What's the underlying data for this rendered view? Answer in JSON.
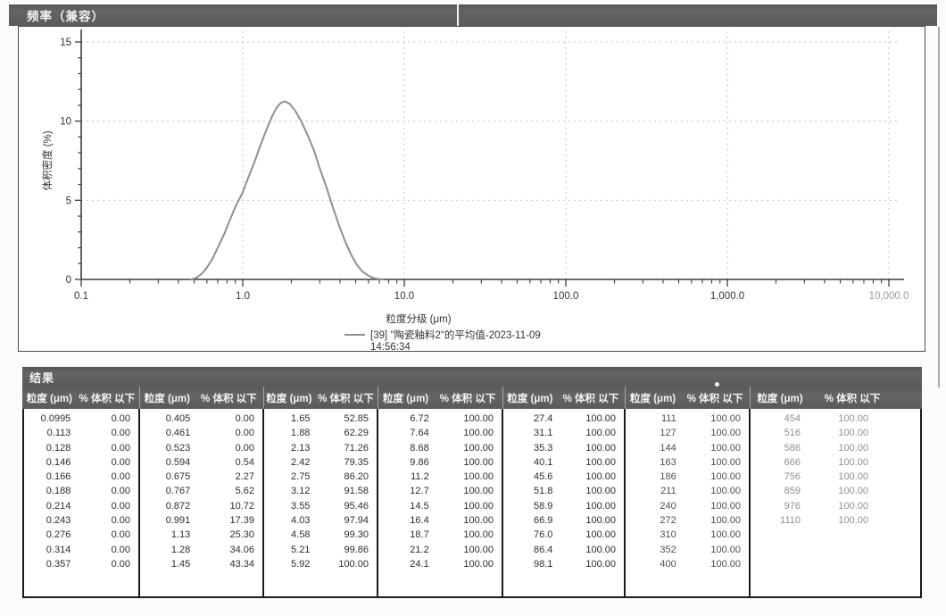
{
  "frequency_panel": {
    "title": "频率（兼容）"
  },
  "chart_data": {
    "type": "line",
    "title": "频率（兼容）",
    "xlabel": "粒度分级 (μm)",
    "ylabel": "体积密度 (%)",
    "x_scale": "log",
    "xlim": [
      0.1,
      10000
    ],
    "ylim": [
      0,
      15
    ],
    "y_ticks": [
      0,
      5,
      10,
      15
    ],
    "x_tick_labels": [
      "0.1",
      "1.0",
      "10.0",
      "100.0",
      "1,000.0",
      "10,000.0"
    ],
    "grid": true,
    "legend_position": "bottom-center",
    "series": [
      {
        "name": "[39] \"陶瓷釉料2\"的平均值-2023-11-09",
        "name_line2": "14:56:34",
        "color": "#8f8f8f",
        "points": [
          [
            0.48,
            0
          ],
          [
            0.52,
            0.12
          ],
          [
            0.56,
            0.38
          ],
          [
            0.6,
            0.75
          ],
          [
            0.65,
            1.3
          ],
          [
            0.7,
            2.0
          ],
          [
            0.77,
            2.9
          ],
          [
            0.84,
            3.85
          ],
          [
            0.91,
            4.7
          ],
          [
            0.99,
            5.4
          ],
          [
            1.08,
            6.4
          ],
          [
            1.19,
            7.5
          ],
          [
            1.3,
            8.6
          ],
          [
            1.42,
            9.6
          ],
          [
            1.52,
            10.3
          ],
          [
            1.62,
            10.85
          ],
          [
            1.72,
            11.15
          ],
          [
            1.82,
            11.25
          ],
          [
            1.95,
            11.1
          ],
          [
            2.1,
            10.7
          ],
          [
            2.3,
            10.0
          ],
          [
            2.5,
            9.2
          ],
          [
            2.75,
            8.2
          ],
          [
            3.0,
            7.0
          ],
          [
            3.3,
            5.8
          ],
          [
            3.6,
            4.6
          ],
          [
            3.95,
            3.4
          ],
          [
            4.3,
            2.4
          ],
          [
            4.7,
            1.55
          ],
          [
            5.1,
            0.9
          ],
          [
            5.5,
            0.5
          ],
          [
            5.95,
            0.26
          ],
          [
            6.4,
            0.1
          ],
          [
            6.9,
            0.03
          ],
          [
            7.3,
            0
          ]
        ]
      }
    ]
  },
  "results_table": {
    "title": "结果",
    "size_header": "粒度 (μm)",
    "pct_header": "% 体积 以下",
    "groups": [
      {
        "rows": [
          [
            "0.0995",
            "0.00"
          ],
          [
            "0.113",
            "0.00"
          ],
          [
            "0.128",
            "0.00"
          ],
          [
            "0.146",
            "0.00"
          ],
          [
            "0.166",
            "0.00"
          ],
          [
            "0.188",
            "0.00"
          ],
          [
            "0.214",
            "0.00"
          ],
          [
            "0.243",
            "0.00"
          ],
          [
            "0.276",
            "0.00"
          ],
          [
            "0.314",
            "0.00"
          ],
          [
            "0.357",
            "0.00"
          ]
        ]
      },
      {
        "rows": [
          [
            "0.405",
            "0.00"
          ],
          [
            "0.461",
            "0.00"
          ],
          [
            "0.523",
            "0.00"
          ],
          [
            "0.594",
            "0.54"
          ],
          [
            "0.675",
            "2.27"
          ],
          [
            "0.767",
            "5.62"
          ],
          [
            "0.872",
            "10.72"
          ],
          [
            "0.991",
            "17.39"
          ],
          [
            "1.13",
            "25.30"
          ],
          [
            "1.28",
            "34.06"
          ],
          [
            "1.45",
            "43.34"
          ]
        ]
      },
      {
        "rows": [
          [
            "1.65",
            "52.85"
          ],
          [
            "1.88",
            "62.29"
          ],
          [
            "2.13",
            "71.26"
          ],
          [
            "2.42",
            "79.35"
          ],
          [
            "2.75",
            "86.20"
          ],
          [
            "3.12",
            "91.58"
          ],
          [
            "3.55",
            "95.46"
          ],
          [
            "4.03",
            "97.94"
          ],
          [
            "4.58",
            "99.30"
          ],
          [
            "5.21",
            "99.86"
          ],
          [
            "5.92",
            "100.00"
          ]
        ]
      },
      {
        "rows": [
          [
            "6.72",
            "100.00"
          ],
          [
            "7.64",
            "100.00"
          ],
          [
            "8.68",
            "100.00"
          ],
          [
            "9.86",
            "100.00"
          ],
          [
            "11.2",
            "100.00"
          ],
          [
            "12.7",
            "100.00"
          ],
          [
            "14.5",
            "100.00"
          ],
          [
            "16.4",
            "100.00"
          ],
          [
            "18.7",
            "100.00"
          ],
          [
            "21.2",
            "100.00"
          ],
          [
            "24.1",
            "100.00"
          ]
        ]
      },
      {
        "rows": [
          [
            "27.4",
            "100.00"
          ],
          [
            "31.1",
            "100.00"
          ],
          [
            "35.3",
            "100.00"
          ],
          [
            "40.1",
            "100.00"
          ],
          [
            "45.6",
            "100.00"
          ],
          [
            "51.8",
            "100.00"
          ],
          [
            "58.9",
            "100.00"
          ],
          [
            "66.9",
            "100.00"
          ],
          [
            "76.0",
            "100.00"
          ],
          [
            "86.4",
            "100.00"
          ],
          [
            "98.1",
            "100.00"
          ]
        ]
      },
      {
        "rows": [
          [
            "111",
            "100.00"
          ],
          [
            "127",
            "100.00"
          ],
          [
            "144",
            "100.00"
          ],
          [
            "163",
            "100.00"
          ],
          [
            "186",
            "100.00"
          ],
          [
            "211",
            "100.00"
          ],
          [
            "240",
            "100.00"
          ],
          [
            "272",
            "100.00"
          ],
          [
            "310",
            "100.00"
          ],
          [
            "352",
            "100.00"
          ],
          [
            "400",
            "100.00"
          ]
        ]
      },
      {
        "rows": [
          [
            "454",
            "100.00"
          ],
          [
            "516",
            "100.00"
          ],
          [
            "586",
            "100.00"
          ],
          [
            "666",
            "100.00"
          ],
          [
            "756",
            "100.00"
          ],
          [
            "859",
            "100.00"
          ],
          [
            "976",
            "100.00"
          ],
          [
            "1110",
            "100.00"
          ]
        ]
      }
    ]
  }
}
